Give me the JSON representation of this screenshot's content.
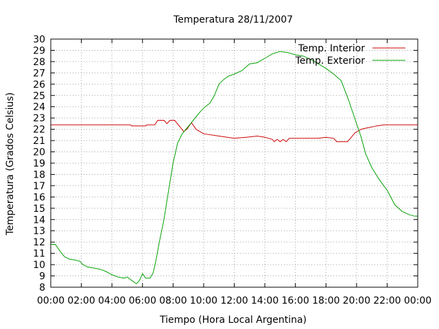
{
  "chart_data": {
    "type": "line",
    "title": "Temperatura 28/11/2007",
    "xlabel": "Tiempo (Hora Local Argentina)",
    "ylabel": "Temperatura (Grados Celsius)",
    "xlim": [
      0,
      24
    ],
    "ylim": [
      8,
      30
    ],
    "x_ticks": [
      "00:00",
      "02:00",
      "04:00",
      "06:00",
      "08:00",
      "10:00",
      "12:00",
      "14:00",
      "16:00",
      "18:00",
      "20:00",
      "22:00",
      "00:00"
    ],
    "y_ticks": [
      8,
      9,
      10,
      11,
      12,
      13,
      14,
      15,
      16,
      17,
      18,
      19,
      20,
      21,
      22,
      23,
      24,
      25,
      26,
      27,
      28,
      29,
      30
    ],
    "grid": true,
    "legend_position": "top-right",
    "series": [
      {
        "name": "Temp. Interior",
        "color": "#cc0000",
        "points": [
          [
            0,
            22.4
          ],
          [
            5.2,
            22.4
          ],
          [
            5.3,
            22.3
          ],
          [
            6.2,
            22.3
          ],
          [
            6.3,
            22.4
          ],
          [
            6.8,
            22.4
          ],
          [
            7.0,
            22.8
          ],
          [
            7.4,
            22.8
          ],
          [
            7.6,
            22.5
          ],
          [
            7.8,
            22.8
          ],
          [
            8.1,
            22.8
          ],
          [
            8.4,
            22.3
          ],
          [
            8.7,
            21.8
          ],
          [
            8.9,
            22.0
          ],
          [
            9.2,
            22.6
          ],
          [
            9.5,
            22.0
          ],
          [
            10.0,
            21.6
          ],
          [
            11.0,
            21.4
          ],
          [
            12.0,
            21.2
          ],
          [
            12.8,
            21.3
          ],
          [
            13.5,
            21.4
          ],
          [
            14.0,
            21.3
          ],
          [
            14.5,
            21.1
          ],
          [
            14.6,
            20.9
          ],
          [
            14.8,
            21.1
          ],
          [
            15.0,
            20.9
          ],
          [
            15.2,
            21.1
          ],
          [
            15.4,
            20.9
          ],
          [
            15.6,
            21.2
          ],
          [
            16.5,
            21.2
          ],
          [
            17.5,
            21.2
          ],
          [
            18.0,
            21.3
          ],
          [
            18.5,
            21.2
          ],
          [
            18.7,
            20.9
          ],
          [
            19.4,
            20.9
          ],
          [
            19.6,
            21.2
          ],
          [
            19.9,
            21.7
          ],
          [
            20.3,
            22.0
          ],
          [
            20.6,
            22.1
          ],
          [
            21.0,
            22.2
          ],
          [
            21.3,
            22.3
          ],
          [
            21.8,
            22.4
          ],
          [
            24,
            22.4
          ]
        ]
      },
      {
        "name": "Temp. Exterior",
        "color": "#00a000",
        "points": [
          [
            0,
            11.8
          ],
          [
            0.3,
            11.8
          ],
          [
            0.6,
            11.2
          ],
          [
            0.9,
            10.7
          ],
          [
            1.2,
            10.5
          ],
          [
            1.6,
            10.4
          ],
          [
            1.9,
            10.3
          ],
          [
            2.1,
            10.0
          ],
          [
            2.4,
            9.8
          ],
          [
            2.8,
            9.7
          ],
          [
            3.2,
            9.6
          ],
          [
            3.6,
            9.4
          ],
          [
            4.0,
            9.1
          ],
          [
            4.4,
            8.9
          ],
          [
            4.8,
            8.8
          ],
          [
            5.0,
            8.9
          ],
          [
            5.2,
            8.7
          ],
          [
            5.4,
            8.5
          ],
          [
            5.6,
            8.3
          ],
          [
            5.8,
            8.6
          ],
          [
            6.0,
            9.2
          ],
          [
            6.2,
            8.8
          ],
          [
            6.5,
            8.8
          ],
          [
            6.7,
            9.3
          ],
          [
            6.9,
            10.5
          ],
          [
            7.1,
            12.0
          ],
          [
            7.4,
            14.0
          ],
          [
            7.7,
            16.5
          ],
          [
            8.0,
            19.0
          ],
          [
            8.3,
            20.8
          ],
          [
            8.6,
            21.6
          ],
          [
            8.9,
            22.1
          ],
          [
            9.2,
            22.6
          ],
          [
            9.5,
            23.1
          ],
          [
            9.8,
            23.6
          ],
          [
            10.1,
            24.0
          ],
          [
            10.4,
            24.3
          ],
          [
            10.7,
            25.0
          ],
          [
            11.0,
            26.0
          ],
          [
            11.3,
            26.4
          ],
          [
            11.6,
            26.7
          ],
          [
            12.0,
            26.9
          ],
          [
            12.5,
            27.2
          ],
          [
            13.0,
            27.8
          ],
          [
            13.5,
            27.9
          ],
          [
            14.0,
            28.3
          ],
          [
            14.5,
            28.7
          ],
          [
            15.0,
            28.9
          ],
          [
            15.5,
            28.8
          ],
          [
            16.0,
            28.6
          ],
          [
            16.5,
            28.5
          ],
          [
            17.0,
            28.2
          ],
          [
            17.5,
            27.8
          ],
          [
            18.0,
            27.4
          ],
          [
            18.5,
            26.9
          ],
          [
            19.0,
            26.3
          ],
          [
            19.5,
            24.5
          ],
          [
            20.0,
            22.5
          ],
          [
            20.3,
            21.3
          ],
          [
            20.6,
            19.8
          ],
          [
            21.0,
            18.6
          ],
          [
            21.5,
            17.5
          ],
          [
            22.0,
            16.6
          ],
          [
            22.5,
            15.3
          ],
          [
            23.0,
            14.7
          ],
          [
            23.5,
            14.4
          ],
          [
            23.8,
            14.3
          ],
          [
            24,
            14.3
          ]
        ]
      }
    ]
  }
}
